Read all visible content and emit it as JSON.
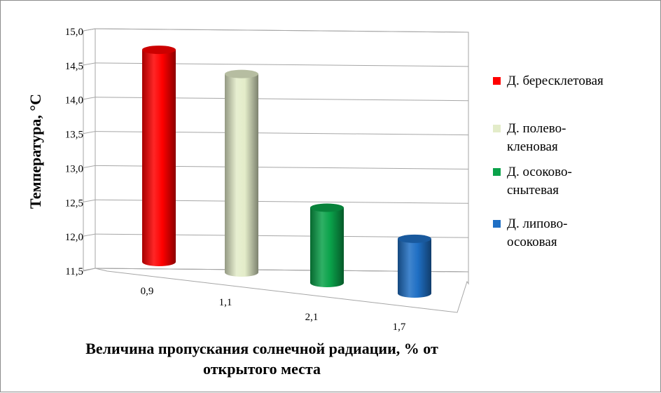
{
  "chart_data": {
    "type": "bar",
    "style": "3d-cylinder",
    "categories": [
      "0,9",
      "1,1",
      "2,1",
      "1,7"
    ],
    "series": [
      {
        "name": "Д. бересклетовая",
        "color": "#ff0000",
        "value": 14.6
      },
      {
        "name": "Д. полево-кленовая",
        "color": "#e3ecc9",
        "value": 14.4
      },
      {
        "name": "Д. осоково-снытевая",
        "color": "#0aa24a",
        "value": 12.6
      },
      {
        "name": "Д. липово-осоковая",
        "color": "#1f6fc4",
        "value": 12.3
      }
    ],
    "yticks": [
      "11,5",
      "12,0",
      "12,5",
      "13,0",
      "13,5",
      "14,0",
      "14,5",
      "15,0"
    ],
    "ylim": [
      11.5,
      15.0
    ],
    "ylabel": "Температура, °С",
    "xlabel_lines": [
      "Величина пропускания солнечной радиации, % от",
      "открытого места"
    ],
    "legend_lines": [
      [
        "Д. бересклетовая"
      ],
      [
        "Д. полево-",
        "кленовая"
      ],
      [
        "Д. осоково-",
        "снытевая"
      ],
      [
        "Д. липово-",
        "осоковая"
      ]
    ],
    "grid": true,
    "legend_position": "right"
  }
}
